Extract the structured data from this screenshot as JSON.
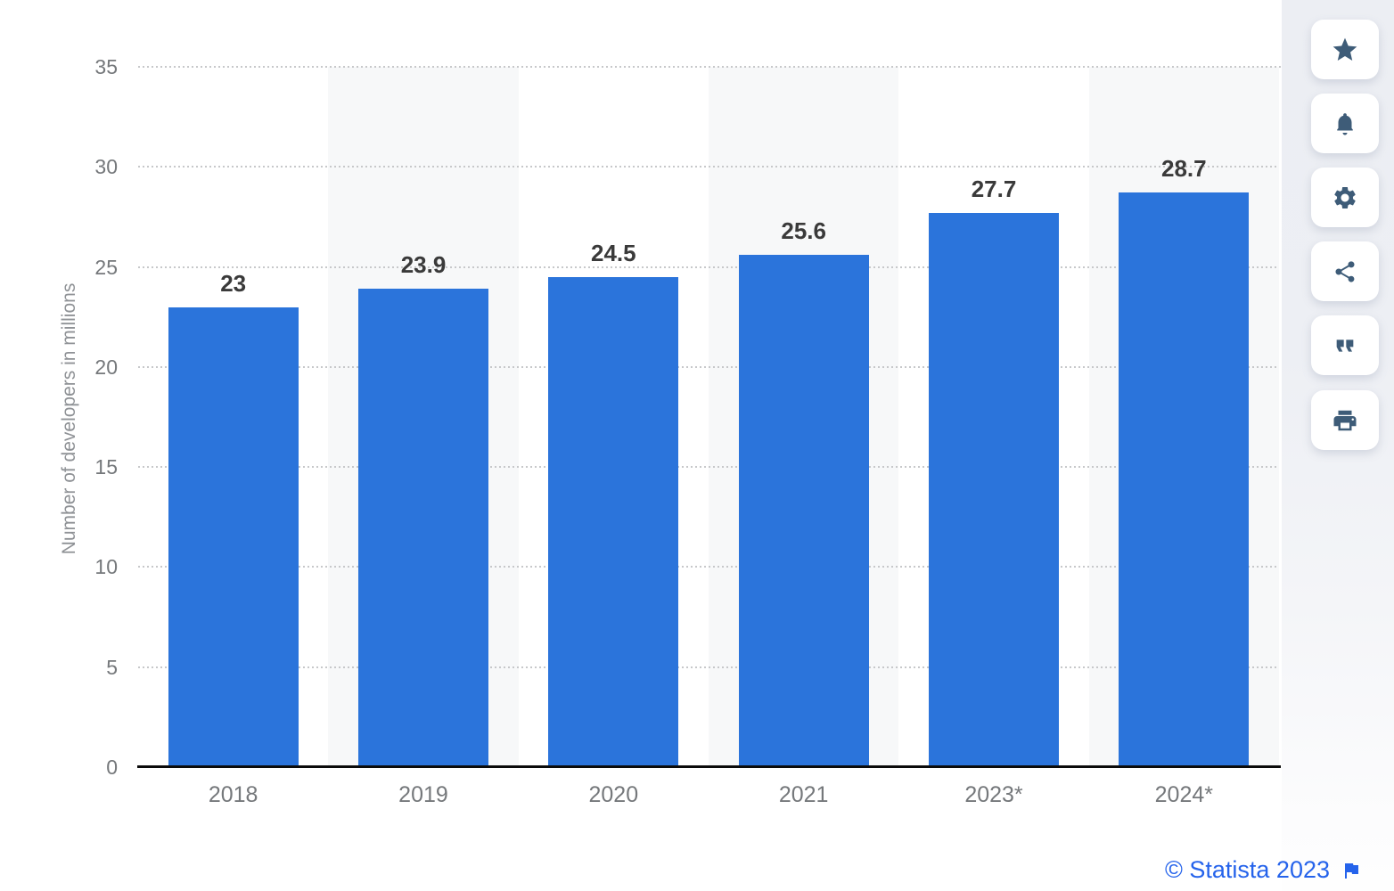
{
  "chart_data": {
    "type": "bar",
    "title": "",
    "categories": [
      "2018",
      "2019",
      "2020",
      "2021",
      "2023*",
      "2024*"
    ],
    "values": [
      23,
      23.9,
      24.5,
      25.6,
      27.7,
      28.7
    ],
    "value_labels": [
      "23",
      "23.9",
      "24.5",
      "25.6",
      "27.7",
      "28.7"
    ],
    "xlabel": "",
    "ylabel": "Number of developers in millions",
    "ylim": [
      0,
      35
    ],
    "yticks": [
      0,
      5,
      10,
      15,
      20,
      25,
      30,
      35
    ],
    "grid": "horizontal-dotted",
    "legend": "none",
    "bar_color": "#2b74db",
    "band_color": "#f7f8f9",
    "banded_columns": [
      1,
      3,
      5
    ]
  },
  "toolbar": {
    "buttons": [
      {
        "name": "favorite",
        "icon": "star-icon"
      },
      {
        "name": "notifications",
        "icon": "bell-icon"
      },
      {
        "name": "settings",
        "icon": "gear-icon"
      },
      {
        "name": "share",
        "icon": "share-icon"
      },
      {
        "name": "cite",
        "icon": "quote-icon"
      },
      {
        "name": "print",
        "icon": "printer-icon"
      }
    ],
    "icon_color": "#3e5c78"
  },
  "credit": {
    "text": "© Statista 2023",
    "color": "#2563eb"
  }
}
